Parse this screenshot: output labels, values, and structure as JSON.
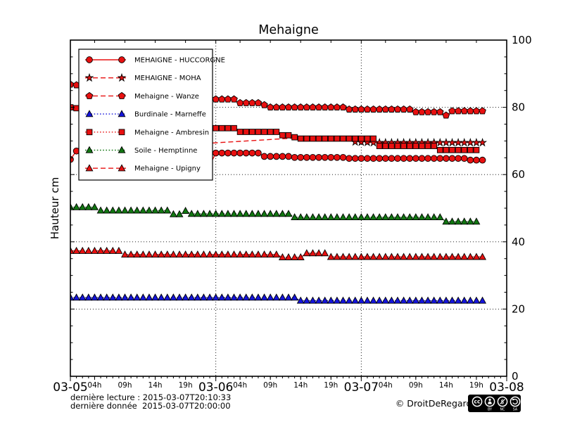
{
  "title": "Mehaigne",
  "axes": {
    "ylabel": "Hauteur cm",
    "y_range": [
      0,
      100
    ],
    "y_major_ticks": [
      0,
      20,
      40,
      60,
      80,
      100
    ],
    "y_minor_step": 5,
    "y_grid": [
      20,
      40,
      60,
      80
    ],
    "x_range_hours": [
      0,
      72
    ],
    "x_grid_hours": [
      24,
      48
    ],
    "x_minor_step_hours": 1,
    "day_ticks": [
      {
        "t": 0,
        "label": "03-05"
      },
      {
        "t": 24,
        "label": "03-06"
      },
      {
        "t": 48,
        "label": "03-07"
      },
      {
        "t": 72,
        "label": "03-08"
      }
    ],
    "hour_ticks": [
      {
        "t": 4,
        "label": "04h"
      },
      {
        "t": 9,
        "label": "09h"
      },
      {
        "t": 14,
        "label": "14h"
      },
      {
        "t": 19,
        "label": "19h"
      },
      {
        "t": 28,
        "label": "04h"
      },
      {
        "t": 33,
        "label": "09h"
      },
      {
        "t": 38,
        "label": "14h"
      },
      {
        "t": 43,
        "label": "19h"
      },
      {
        "t": 52,
        "label": "04h"
      },
      {
        "t": 57,
        "label": "09h"
      },
      {
        "t": 62,
        "label": "14h"
      },
      {
        "t": 67,
        "label": "19h"
      }
    ]
  },
  "chart_data": {
    "type": "line",
    "title": "Mehaigne",
    "ylabel": "Hauteur cm",
    "ylim": [
      0,
      100
    ],
    "x_unit": "hours since 2015-03-05 00:00",
    "grid": "dotted",
    "legend_position": "upper-left",
    "series": [
      {
        "name": "huccorgne",
        "label": "MEHAIGNE - HUCCORGNE",
        "color": "#e81010",
        "line": "solid",
        "marker": "circle",
        "marker_from": 0,
        "points": [
          [
            0,
            64.5
          ],
          [
            1,
            67.0
          ],
          [
            2,
            69.0
          ],
          [
            3,
            69.0
          ],
          [
            13,
            67.0
          ],
          [
            19,
            66.5
          ],
          [
            23,
            66.5
          ],
          [
            23.5,
            64.6
          ],
          [
            24,
            66.4
          ],
          [
            31,
            66.4
          ],
          [
            32,
            65.4
          ],
          [
            36,
            65.4
          ],
          [
            37,
            65.1
          ],
          [
            45,
            65.1
          ],
          [
            46,
            64.8
          ],
          [
            65,
            64.8
          ],
          [
            66,
            64.3
          ],
          [
            68,
            64.3
          ]
        ]
      },
      {
        "name": "moha",
        "label": "MEHAIGNE - MOHA",
        "color": "#e81010",
        "line": "dashed",
        "marker": "star",
        "marker_from": 47,
        "points": [
          [
            23.5,
            69.4
          ],
          [
            40,
            71.2
          ],
          [
            44,
            70.9
          ],
          [
            46.5,
            70.6
          ],
          [
            47,
            69.7
          ],
          [
            50,
            69.5
          ],
          [
            68,
            69.5
          ]
        ]
      },
      {
        "name": "wanze",
        "label": "Mehaigne - Wanze",
        "color": "#e81010",
        "line": "dashed",
        "marker": "pentagon",
        "marker_from": 0,
        "points": [
          [
            0,
            86.8
          ],
          [
            24,
            82.4
          ],
          [
            27,
            82.4
          ],
          [
            28,
            81.3
          ],
          [
            31,
            81.3
          ],
          [
            32,
            80.7
          ],
          [
            33,
            80.0
          ],
          [
            45,
            80.0
          ],
          [
            46,
            79.4
          ],
          [
            56,
            79.4
          ],
          [
            57,
            78.6
          ],
          [
            61,
            78.6
          ],
          [
            62,
            77.6
          ],
          [
            63,
            78.9
          ],
          [
            68,
            78.9
          ]
        ]
      },
      {
        "name": "marneffe",
        "label": "Burdinale - Marneffe",
        "color": "#1414dd",
        "line": "dotted",
        "marker": "triangle",
        "marker_from": 0,
        "points": [
          [
            0,
            23.4
          ],
          [
            37,
            23.4
          ],
          [
            38,
            22.5
          ],
          [
            68,
            22.5
          ]
        ]
      },
      {
        "name": "ambresin",
        "label": "Mehaigne - Ambresin",
        "color": "#e81010",
        "line": "dotted",
        "marker": "square",
        "marker_from": 0,
        "points": [
          [
            0,
            80.0
          ],
          [
            24,
            73.8
          ],
          [
            27,
            73.8
          ],
          [
            28,
            72.7
          ],
          [
            34,
            72.7
          ],
          [
            35,
            71.7
          ],
          [
            36,
            71.7
          ],
          [
            37,
            71.1
          ],
          [
            38,
            70.7
          ],
          [
            50,
            70.7
          ],
          [
            51,
            68.5
          ],
          [
            60,
            68.5
          ],
          [
            61,
            67.3
          ],
          [
            67,
            67.3
          ]
        ]
      },
      {
        "name": "hemptinne",
        "label": "Soile - Hemptinne",
        "color": "#117711",
        "line": "dotted",
        "marker": "triangle",
        "marker_from": 0,
        "points": [
          [
            0,
            50.3
          ],
          [
            4,
            50.3
          ],
          [
            5,
            49.3
          ],
          [
            16,
            49.3
          ],
          [
            17,
            48.2
          ],
          [
            18,
            48.2
          ],
          [
            19,
            49.2
          ],
          [
            20,
            48.3
          ],
          [
            36,
            48.3
          ],
          [
            37,
            47.3
          ],
          [
            61,
            47.3
          ],
          [
            62,
            46.0
          ],
          [
            67,
            46.0
          ]
        ]
      },
      {
        "name": "upigny",
        "label": "Mehaigne - Upigny",
        "color": "#e81010",
        "line": "dashed",
        "marker": "triangle",
        "marker_from": 0,
        "points": [
          [
            0,
            37.3
          ],
          [
            8,
            37.3
          ],
          [
            9,
            36.2
          ],
          [
            34,
            36.2
          ],
          [
            35,
            35.4
          ],
          [
            38,
            35.4
          ],
          [
            39,
            36.6
          ],
          [
            42,
            36.6
          ],
          [
            43,
            35.5
          ],
          [
            68,
            35.5
          ]
        ]
      }
    ]
  },
  "footer": {
    "line1": "dernière lecture : 2015-03-07T20:10:33",
    "line2": "dernière donnée  2015-03-07T20:00:00",
    "copyright": "© DroitDeRegard.be",
    "cc": {
      "cc_label": "cc",
      "by": "BY",
      "nc": "NC",
      "sa": "SA"
    }
  }
}
